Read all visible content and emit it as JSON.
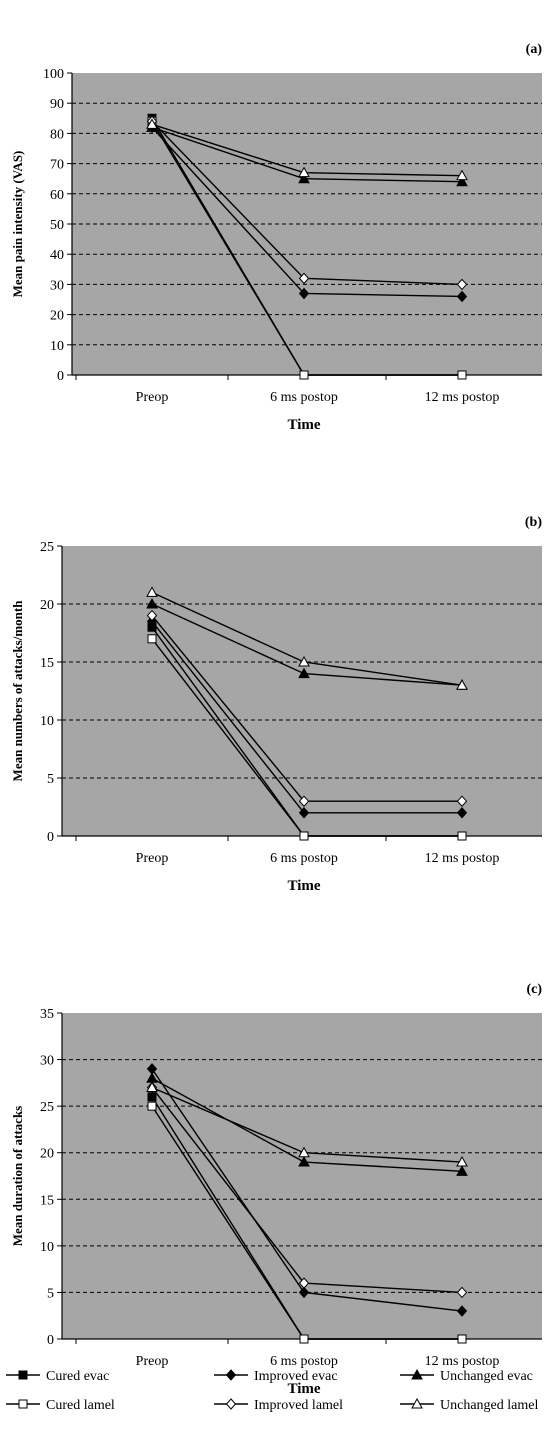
{
  "series_styles": [
    {
      "name": "Cured evac",
      "marker": "square",
      "fill": "#000000"
    },
    {
      "name": "Cured lamel",
      "marker": "square",
      "fill": "#ffffff"
    },
    {
      "name": "Improved evac",
      "marker": "diamond",
      "fill": "#000000"
    },
    {
      "name": "Improved lamel",
      "marker": "diamond",
      "fill": "#ffffff"
    },
    {
      "name": "Unchanged evac",
      "marker": "triangle",
      "fill": "#000000"
    },
    {
      "name": "Unchanged lamel",
      "marker": "triangle",
      "fill": "#ffffff"
    }
  ],
  "legend": {
    "rows": [
      [
        "Cured evac",
        "Improved evac",
        "Unchanged evac"
      ],
      [
        "Cured lamel",
        "Improved lamel",
        "Unchanged lamel"
      ]
    ],
    "placement": "bottom"
  },
  "colors": {
    "plot_background": "#a6a6a6",
    "gridline": "#000000",
    "line": "#000000"
  },
  "chart_data": [
    {
      "type": "line",
      "panel_label": "(a)",
      "title": "",
      "xlabel": "Time",
      "ylabel": "Mean pain intensity (VAS)",
      "categories": [
        "Preop",
        "6 ms postop",
        "12 ms postop"
      ],
      "ylim": [
        0,
        100
      ],
      "yticks": [
        0,
        10,
        20,
        30,
        40,
        50,
        60,
        70,
        80,
        90,
        100
      ],
      "grid": true,
      "series": [
        {
          "name": "Cured evac",
          "values": [
            85,
            0,
            0
          ]
        },
        {
          "name": "Cured lamel",
          "values": [
            84,
            0,
            0
          ]
        },
        {
          "name": "Improved evac",
          "values": [
            82,
            27,
            26
          ]
        },
        {
          "name": "Improved lamel",
          "values": [
            84,
            32,
            30
          ]
        },
        {
          "name": "Unchanged evac",
          "values": [
            82,
            65,
            64
          ]
        },
        {
          "name": "Unchanged lamel",
          "values": [
            83,
            67,
            66
          ]
        }
      ]
    },
    {
      "type": "line",
      "panel_label": "(b)",
      "title": "",
      "xlabel": "Time",
      "ylabel": "Mean numbers of attacks/month",
      "categories": [
        "Preop",
        "6 ms postop",
        "12 ms postop"
      ],
      "ylim": [
        0,
        25
      ],
      "yticks": [
        0,
        5,
        10,
        15,
        20,
        25
      ],
      "grid": true,
      "series": [
        {
          "name": "Cured evac",
          "values": [
            18,
            0,
            0
          ]
        },
        {
          "name": "Cured lamel",
          "values": [
            17,
            0,
            0
          ]
        },
        {
          "name": "Improved evac",
          "values": [
            18.5,
            2,
            2
          ]
        },
        {
          "name": "Improved lamel",
          "values": [
            19,
            3,
            3
          ]
        },
        {
          "name": "Unchanged evac",
          "values": [
            20,
            14,
            13
          ]
        },
        {
          "name": "Unchanged lamel",
          "values": [
            21,
            15,
            13
          ]
        }
      ]
    },
    {
      "type": "line",
      "panel_label": "(c)",
      "title": "",
      "xlabel": "Time",
      "ylabel": "Mean duration of attacks",
      "categories": [
        "Preop",
        "6 ms postop",
        "12 ms postop"
      ],
      "ylim": [
        0,
        35
      ],
      "yticks": [
        0,
        5,
        10,
        15,
        20,
        25,
        30,
        35
      ],
      "grid": true,
      "series": [
        {
          "name": "Cured evac",
          "values": [
            26,
            0,
            0
          ]
        },
        {
          "name": "Cured lamel",
          "values": [
            25,
            0,
            0
          ]
        },
        {
          "name": "Improved evac",
          "values": [
            29,
            5,
            3
          ]
        },
        {
          "name": "Improved lamel",
          "values": [
            27,
            6,
            5
          ]
        },
        {
          "name": "Unchanged evac",
          "values": [
            28,
            19,
            18
          ]
        },
        {
          "name": "Unchanged lamel",
          "values": [
            27,
            20,
            19
          ]
        }
      ]
    }
  ]
}
